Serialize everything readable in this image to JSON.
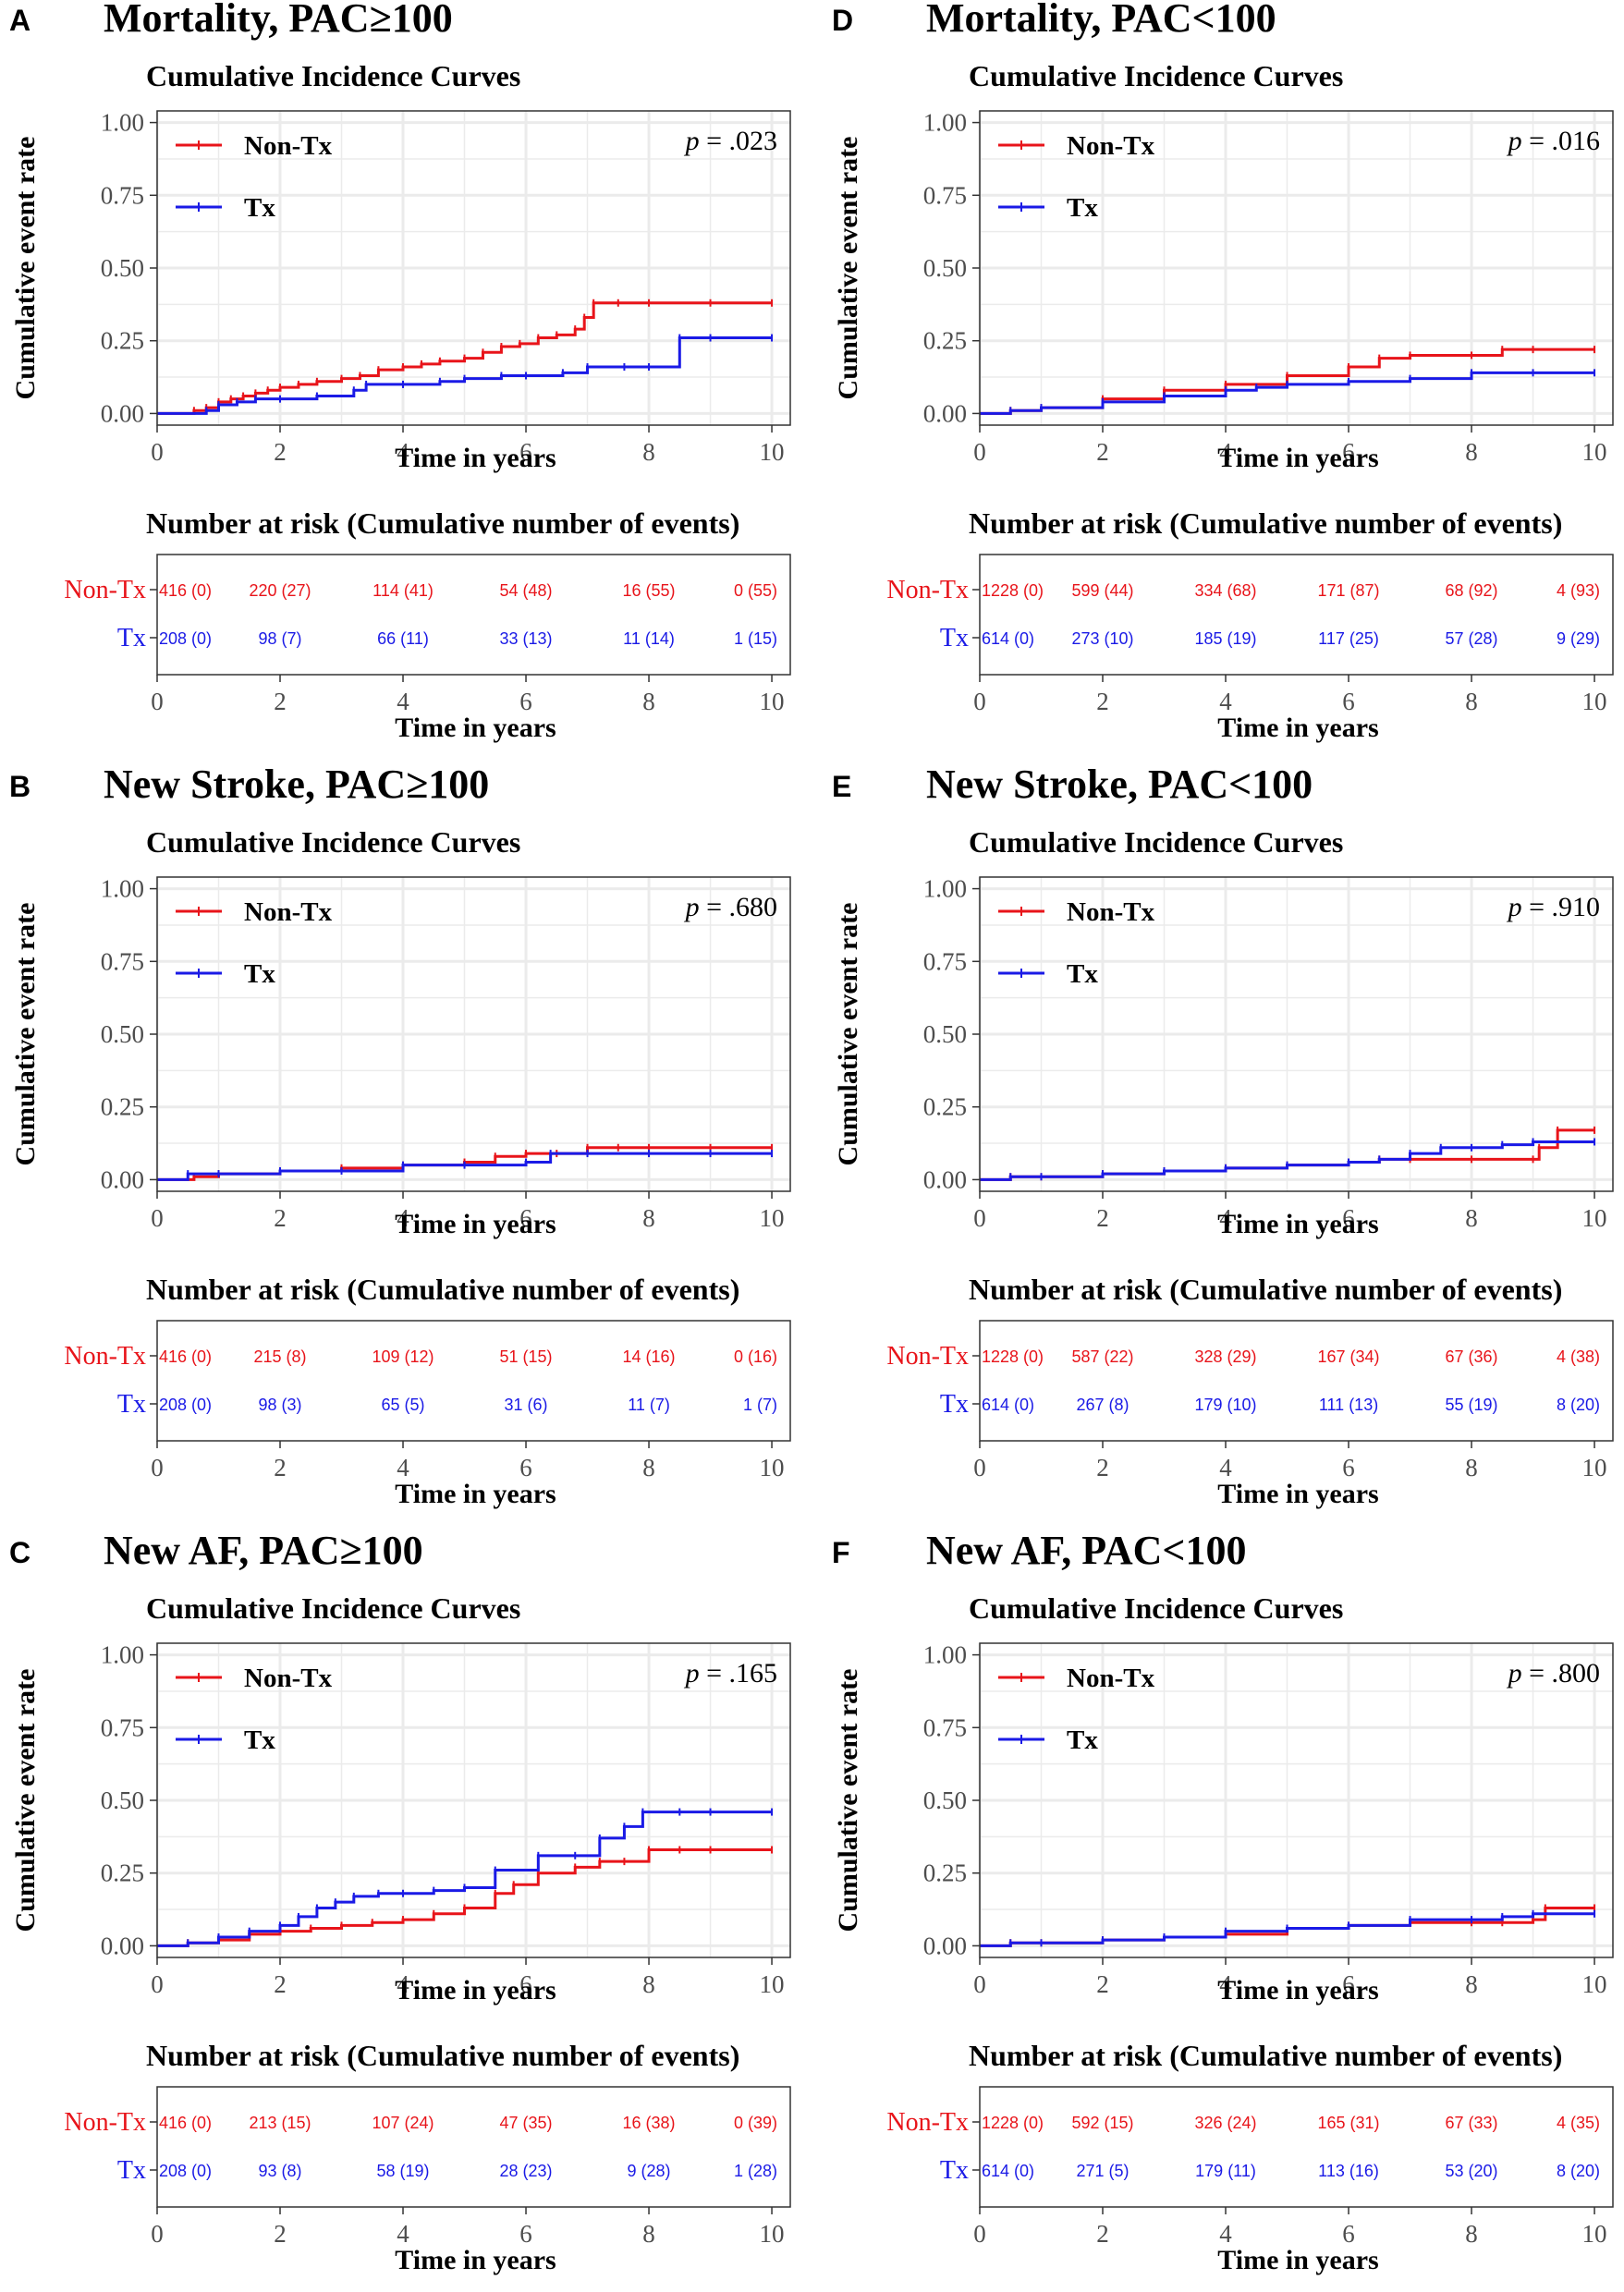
{
  "chart_data": [
    {
      "type": "line",
      "letter": "A",
      "title": "Mortality, PAC≥100",
      "subtitle": "Cumulative Incidence Curves",
      "xlabel": "Time in years",
      "ylabel": "Cumulative event rate",
      "xlim": [
        0,
        10
      ],
      "ylim": [
        0,
        1
      ],
      "x_ticks": [
        "0",
        "2",
        "4",
        "6",
        "8",
        "10"
      ],
      "y_ticks": [
        "0.00",
        "0.25",
        "0.50",
        "0.75",
        "1.00"
      ],
      "p_label": "p",
      "p_value": "= .023",
      "series": [
        {
          "name": "Non-Tx",
          "color": "#e8141a",
          "x": [
            0,
            0.6,
            0.8,
            1,
            1.2,
            1.4,
            1.6,
            1.8,
            2,
            2.3,
            2.6,
            3,
            3.3,
            3.6,
            4,
            4.3,
            4.6,
            5,
            5.3,
            5.6,
            5.9,
            6.2,
            6.5,
            6.8,
            6.95,
            7.1,
            7.5,
            8,
            9,
            10
          ],
          "y": [
            0,
            0.01,
            0.02,
            0.04,
            0.05,
            0.06,
            0.07,
            0.08,
            0.09,
            0.1,
            0.11,
            0.12,
            0.13,
            0.15,
            0.16,
            0.17,
            0.18,
            0.19,
            0.21,
            0.23,
            0.24,
            0.26,
            0.27,
            0.29,
            0.33,
            0.38,
            0.38,
            0.38,
            0.38,
            0.38
          ]
        },
        {
          "name": "Tx",
          "color": "#1a1ae6",
          "x": [
            0,
            0.8,
            1,
            1.3,
            1.6,
            2,
            2.6,
            3.2,
            3.4,
            4,
            4.6,
            5,
            5.6,
            6,
            6.6,
            7,
            7.6,
            8,
            8.5,
            9,
            10
          ],
          "y": [
            0,
            0.01,
            0.03,
            0.04,
            0.05,
            0.05,
            0.06,
            0.08,
            0.1,
            0.1,
            0.11,
            0.12,
            0.13,
            0.13,
            0.14,
            0.16,
            0.16,
            0.16,
            0.26,
            0.26,
            0.26
          ]
        }
      ],
      "risk_title": "Number at risk (Cumulative number of events)",
      "risk_times": [
        "0",
        "2",
        "4",
        "6",
        "8",
        "10"
      ],
      "risk_rows": [
        {
          "label": "Non-Tx",
          "color": "#e8141a",
          "values": [
            "416 (0)",
            "220 (27)",
            "114 (41)",
            "54 (48)",
            "16 (55)",
            "0 (55)"
          ]
        },
        {
          "label": "Tx",
          "color": "#1a1ae6",
          "values": [
            "208 (0)",
            "98 (7)",
            "66 (11)",
            "33 (13)",
            "11 (14)",
            "1 (15)"
          ]
        }
      ]
    },
    {
      "type": "line",
      "letter": "B",
      "title": "New Stroke, PAC≥100",
      "subtitle": "Cumulative Incidence Curves",
      "xlabel": "Time in years",
      "ylabel": "Cumulative event rate",
      "xlim": [
        0,
        10
      ],
      "ylim": [
        0,
        1
      ],
      "x_ticks": [
        "0",
        "2",
        "4",
        "6",
        "8",
        "10"
      ],
      "y_ticks": [
        "0.00",
        "0.25",
        "0.50",
        "0.75",
        "1.00"
      ],
      "p_label": "p",
      "p_value": "= .680",
      "series": [
        {
          "name": "Non-Tx",
          "color": "#e8141a",
          "x": [
            0,
            0.6,
            1,
            2,
            3,
            4,
            5,
            5.5,
            6,
            6.5,
            7,
            7.5,
            8,
            9,
            10
          ],
          "y": [
            0,
            0.01,
            0.02,
            0.03,
            0.04,
            0.05,
            0.06,
            0.08,
            0.09,
            0.09,
            0.11,
            0.11,
            0.11,
            0.11,
            0.11
          ]
        },
        {
          "name": "Tx",
          "color": "#1a1ae6",
          "x": [
            0,
            0.5,
            1,
            2,
            3,
            4,
            5,
            6,
            6.4,
            7,
            8,
            9,
            10
          ],
          "y": [
            0,
            0.02,
            0.02,
            0.03,
            0.03,
            0.05,
            0.05,
            0.06,
            0.09,
            0.09,
            0.09,
            0.09,
            0.09
          ]
        }
      ],
      "risk_title": "Number at risk (Cumulative number of events)",
      "risk_times": [
        "0",
        "2",
        "4",
        "6",
        "8",
        "10"
      ],
      "risk_rows": [
        {
          "label": "Non-Tx",
          "color": "#e8141a",
          "values": [
            "416 (0)",
            "215 (8)",
            "109 (12)",
            "51 (15)",
            "14 (16)",
            "0 (16)"
          ]
        },
        {
          "label": "Tx",
          "color": "#1a1ae6",
          "values": [
            "208 (0)",
            "98 (3)",
            "65 (5)",
            "31 (6)",
            "11 (7)",
            "1 (7)"
          ]
        }
      ]
    },
    {
      "type": "line",
      "letter": "C",
      "title": "New AF, PAC≥100",
      "subtitle": "Cumulative Incidence Curves",
      "xlabel": "Time in years",
      "ylabel": "Cumulative event rate",
      "xlim": [
        0,
        10
      ],
      "ylim": [
        0,
        1
      ],
      "x_ticks": [
        "0",
        "2",
        "4",
        "6",
        "8",
        "10"
      ],
      "y_ticks": [
        "0.00",
        "0.25",
        "0.50",
        "0.75",
        "1.00"
      ],
      "p_label": "p",
      "p_value": "= .165",
      "series": [
        {
          "name": "Non-Tx",
          "color": "#e8141a",
          "x": [
            0,
            0.5,
            1,
            1.5,
            2,
            2.5,
            3,
            3.5,
            4,
            4.5,
            5,
            5.5,
            5.8,
            6.2,
            6.8,
            7.2,
            7.6,
            8,
            8.5,
            9,
            10
          ],
          "y": [
            0,
            0.01,
            0.02,
            0.04,
            0.05,
            0.06,
            0.07,
            0.08,
            0.09,
            0.11,
            0.13,
            0.18,
            0.21,
            0.25,
            0.27,
            0.29,
            0.29,
            0.33,
            0.33,
            0.33,
            0.33
          ]
        },
        {
          "name": "Tx",
          "color": "#1a1ae6",
          "x": [
            0,
            0.5,
            1,
            1.5,
            2,
            2.3,
            2.6,
            2.9,
            3.2,
            3.6,
            4,
            4.5,
            5,
            5.5,
            6.2,
            6.8,
            7.2,
            7.6,
            7.9,
            8.5,
            9,
            10
          ],
          "y": [
            0,
            0.01,
            0.03,
            0.05,
            0.07,
            0.1,
            0.13,
            0.15,
            0.17,
            0.18,
            0.18,
            0.19,
            0.2,
            0.26,
            0.31,
            0.31,
            0.37,
            0.41,
            0.46,
            0.46,
            0.46,
            0.46
          ]
        }
      ],
      "risk_title": "Number at risk (Cumulative number of events)",
      "risk_times": [
        "0",
        "2",
        "4",
        "6",
        "8",
        "10"
      ],
      "risk_rows": [
        {
          "label": "Non-Tx",
          "color": "#e8141a",
          "values": [
            "416 (0)",
            "213 (15)",
            "107 (24)",
            "47 (35)",
            "16 (38)",
            "0 (39)"
          ]
        },
        {
          "label": "Tx",
          "color": "#1a1ae6",
          "values": [
            "208 (0)",
            "93 (8)",
            "58 (19)",
            "28 (23)",
            "9 (28)",
            "1 (28)"
          ]
        }
      ]
    },
    {
      "type": "line",
      "letter": "D",
      "title": "Mortality, PAC<100",
      "subtitle": "Cumulative Incidence Curves",
      "xlabel": "Time in years",
      "ylabel": "Cumulative event rate",
      "xlim": [
        0,
        10
      ],
      "ylim": [
        0,
        1
      ],
      "x_ticks": [
        "0",
        "2",
        "4",
        "6",
        "8",
        "10"
      ],
      "y_ticks": [
        "0.00",
        "0.25",
        "0.50",
        "0.75",
        "1.00"
      ],
      "p_label": "p",
      "p_value": "= .016",
      "series": [
        {
          "name": "Non-Tx",
          "color": "#e8141a",
          "x": [
            0,
            0.5,
            1,
            2,
            3,
            4,
            5,
            6,
            6.5,
            7,
            8,
            8.5,
            9,
            10
          ],
          "y": [
            0,
            0.01,
            0.02,
            0.05,
            0.08,
            0.1,
            0.13,
            0.16,
            0.19,
            0.2,
            0.2,
            0.22,
            0.22,
            0.22
          ]
        },
        {
          "name": "Tx",
          "color": "#1a1ae6",
          "x": [
            0,
            0.5,
            1,
            2,
            3,
            4,
            4.5,
            5,
            6,
            7,
            8,
            9,
            10
          ],
          "y": [
            0,
            0.01,
            0.02,
            0.04,
            0.06,
            0.08,
            0.09,
            0.1,
            0.11,
            0.12,
            0.14,
            0.14,
            0.14
          ]
        }
      ],
      "risk_title": "Number at risk (Cumulative number of events)",
      "risk_times": [
        "0",
        "2",
        "4",
        "6",
        "8",
        "10"
      ],
      "risk_rows": [
        {
          "label": "Non-Tx",
          "color": "#e8141a",
          "values": [
            "1228 (0)",
            "599 (44)",
            "334 (68)",
            "171 (87)",
            "68 (92)",
            "4 (93)"
          ]
        },
        {
          "label": "Tx",
          "color": "#1a1ae6",
          "values": [
            "614 (0)",
            "273 (10)",
            "185 (19)",
            "117 (25)",
            "57 (28)",
            "9 (29)"
          ]
        }
      ]
    },
    {
      "type": "line",
      "letter": "E",
      "title": "New Stroke, PAC<100",
      "subtitle": "Cumulative Incidence Curves",
      "xlabel": "Time in years",
      "ylabel": "Cumulative event rate",
      "xlim": [
        0,
        10
      ],
      "ylim": [
        0,
        1
      ],
      "x_ticks": [
        "0",
        "2",
        "4",
        "6",
        "8",
        "10"
      ],
      "y_ticks": [
        "0.00",
        "0.25",
        "0.50",
        "0.75",
        "1.00"
      ],
      "p_label": "p",
      "p_value": "= .910",
      "series": [
        {
          "name": "Non-Tx",
          "color": "#e8141a",
          "x": [
            0,
            0.5,
            1,
            2,
            3,
            4,
            5,
            6,
            6.5,
            7,
            8,
            9,
            9.1,
            9.4,
            10
          ],
          "y": [
            0,
            0.01,
            0.01,
            0.02,
            0.03,
            0.04,
            0.05,
            0.06,
            0.07,
            0.07,
            0.07,
            0.07,
            0.11,
            0.17,
            0.17
          ]
        },
        {
          "name": "Tx",
          "color": "#1a1ae6",
          "x": [
            0,
            0.5,
            1,
            2,
            3,
            4,
            5,
            6,
            6.5,
            7,
            7.5,
            8,
            8.5,
            9,
            10
          ],
          "y": [
            0,
            0.01,
            0.01,
            0.02,
            0.03,
            0.04,
            0.05,
            0.06,
            0.07,
            0.09,
            0.11,
            0.11,
            0.12,
            0.13,
            0.13
          ]
        }
      ],
      "risk_title": "Number at risk (Cumulative number of events)",
      "risk_times": [
        "0",
        "2",
        "4",
        "6",
        "8",
        "10"
      ],
      "risk_rows": [
        {
          "label": "Non-Tx",
          "color": "#e8141a",
          "values": [
            "1228 (0)",
            "587 (22)",
            "328 (29)",
            "167 (34)",
            "67 (36)",
            "4 (38)"
          ]
        },
        {
          "label": "Tx",
          "color": "#1a1ae6",
          "values": [
            "614 (0)",
            "267 (8)",
            "179 (10)",
            "111 (13)",
            "55 (19)",
            "8 (20)"
          ]
        }
      ]
    },
    {
      "type": "line",
      "letter": "F",
      "title": "New AF, PAC<100",
      "subtitle": "Cumulative Incidence Curves",
      "xlabel": "Time in years",
      "ylabel": "Cumulative event rate",
      "xlim": [
        0,
        10
      ],
      "ylim": [
        0,
        1
      ],
      "x_ticks": [
        "0",
        "2",
        "4",
        "6",
        "8",
        "10"
      ],
      "y_ticks": [
        "0.00",
        "0.25",
        "0.50",
        "0.75",
        "1.00"
      ],
      "p_label": "p",
      "p_value": "= .800",
      "series": [
        {
          "name": "Non-Tx",
          "color": "#e8141a",
          "x": [
            0,
            0.5,
            1,
            2,
            3,
            4,
            5,
            6,
            7,
            8,
            8.5,
            9,
            9.2,
            10
          ],
          "y": [
            0,
            0.01,
            0.01,
            0.02,
            0.03,
            0.04,
            0.06,
            0.07,
            0.08,
            0.08,
            0.08,
            0.09,
            0.13,
            0.13
          ]
        },
        {
          "name": "Tx",
          "color": "#1a1ae6",
          "x": [
            0,
            0.5,
            1,
            2,
            3,
            4,
            5,
            6,
            7,
            8,
            8.5,
            9,
            10
          ],
          "y": [
            0,
            0.01,
            0.01,
            0.02,
            0.03,
            0.05,
            0.06,
            0.07,
            0.09,
            0.09,
            0.1,
            0.11,
            0.11
          ]
        }
      ],
      "risk_title": "Number at risk (Cumulative number of events)",
      "risk_times": [
        "0",
        "2",
        "4",
        "6",
        "8",
        "10"
      ],
      "risk_rows": [
        {
          "label": "Non-Tx",
          "color": "#e8141a",
          "values": [
            "1228 (0)",
            "592 (15)",
            "326 (24)",
            "165 (31)",
            "67 (33)",
            "4 (35)"
          ]
        },
        {
          "label": "Tx",
          "color": "#1a1ae6",
          "values": [
            "614 (0)",
            "271 (5)",
            "179 (11)",
            "113 (16)",
            "53 (20)",
            "8 (20)"
          ]
        }
      ]
    }
  ]
}
